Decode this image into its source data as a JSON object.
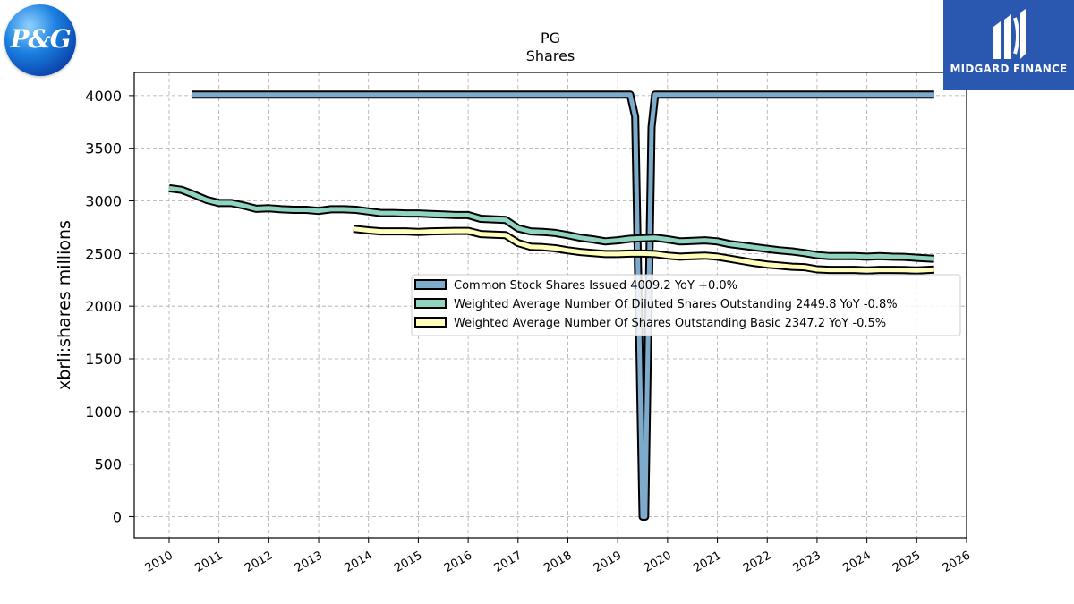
{
  "logos": {
    "company": "P&G",
    "brand": "MIDGARD FINANCE"
  },
  "chart_data": {
    "type": "line",
    "title": "PG",
    "subtitle": "Shares",
    "xlabel": "",
    "ylabel": "xbrli:shares millions",
    "xlim": [
      2009.3,
      2026.0
    ],
    "ylim": [
      -200,
      4220
    ],
    "x_ticks": [
      "2010",
      "2011",
      "2012",
      "2013",
      "2014",
      "2015",
      "2016",
      "2017",
      "2018",
      "2019",
      "2020",
      "2021",
      "2022",
      "2023",
      "2024",
      "2025",
      "2026"
    ],
    "y_ticks": [
      "0",
      "500",
      "1000",
      "1500",
      "2000",
      "2500",
      "3000",
      "3500",
      "4000"
    ],
    "grid": true,
    "legend_position": "center-right",
    "series": [
      {
        "name": "Common Stock Shares Issued",
        "legend": "Common Stock Shares Issued  4009.2 YoY +0.0%",
        "color": "#7eaacb",
        "points": [
          [
            2010.45,
            4009.2
          ],
          [
            2019.25,
            4009.2
          ],
          [
            2019.35,
            3800
          ],
          [
            2019.5,
            0
          ],
          [
            2019.55,
            0
          ],
          [
            2019.68,
            3700
          ],
          [
            2019.75,
            4009.2
          ],
          [
            2025.35,
            4009.2
          ]
        ]
      },
      {
        "name": "Weighted Average Number Of Diluted Shares Outstanding",
        "legend": "Weighted Average Number Of Diluted Shares Outstanding  2449.8 YoY -0.8%",
        "color": "#8fd3c1",
        "points": [
          [
            2010.0,
            3120
          ],
          [
            2010.25,
            3105
          ],
          [
            2010.5,
            3060
          ],
          [
            2010.75,
            3010
          ],
          [
            2011.0,
            2980
          ],
          [
            2011.25,
            2980
          ],
          [
            2011.5,
            2955
          ],
          [
            2011.75,
            2925
          ],
          [
            2012.0,
            2930
          ],
          [
            2012.25,
            2920
          ],
          [
            2012.5,
            2915
          ],
          [
            2012.75,
            2915
          ],
          [
            2013.0,
            2905
          ],
          [
            2013.25,
            2920
          ],
          [
            2013.5,
            2920
          ],
          [
            2013.75,
            2915
          ],
          [
            2014.0,
            2900
          ],
          [
            2014.25,
            2885
          ],
          [
            2014.5,
            2885
          ],
          [
            2014.75,
            2880
          ],
          [
            2015.0,
            2880
          ],
          [
            2015.25,
            2875
          ],
          [
            2015.5,
            2870
          ],
          [
            2015.75,
            2865
          ],
          [
            2016.0,
            2865
          ],
          [
            2016.25,
            2830
          ],
          [
            2016.5,
            2825
          ],
          [
            2016.75,
            2820
          ],
          [
            2017.0,
            2740
          ],
          [
            2017.25,
            2710
          ],
          [
            2017.5,
            2705
          ],
          [
            2017.75,
            2695
          ],
          [
            2018.0,
            2675
          ],
          [
            2018.25,
            2650
          ],
          [
            2018.5,
            2635
          ],
          [
            2018.75,
            2615
          ],
          [
            2019.0,
            2625
          ],
          [
            2019.25,
            2640
          ],
          [
            2019.5,
            2645
          ],
          [
            2019.75,
            2650
          ],
          [
            2020.0,
            2635
          ],
          [
            2020.25,
            2615
          ],
          [
            2020.5,
            2620
          ],
          [
            2020.75,
            2625
          ],
          [
            2021.0,
            2615
          ],
          [
            2021.25,
            2590
          ],
          [
            2021.5,
            2575
          ],
          [
            2021.75,
            2560
          ],
          [
            2022.0,
            2545
          ],
          [
            2022.25,
            2530
          ],
          [
            2022.5,
            2520
          ],
          [
            2022.75,
            2505
          ],
          [
            2023.0,
            2485
          ],
          [
            2023.25,
            2475
          ],
          [
            2023.5,
            2475
          ],
          [
            2023.75,
            2475
          ],
          [
            2024.0,
            2470
          ],
          [
            2024.25,
            2475
          ],
          [
            2024.5,
            2470
          ],
          [
            2024.75,
            2468
          ],
          [
            2025.0,
            2460
          ],
          [
            2025.35,
            2449.8
          ]
        ]
      },
      {
        "name": "Weighted Average Number Of Shares Outstanding Basic",
        "legend": "Weighted Average Number Of Shares Outstanding Basic  2347.2 YoY -0.5%",
        "color": "#ffffbb",
        "points": [
          [
            2013.7,
            2735
          ],
          [
            2014.0,
            2720
          ],
          [
            2014.25,
            2710
          ],
          [
            2014.5,
            2710
          ],
          [
            2014.75,
            2710
          ],
          [
            2015.0,
            2705
          ],
          [
            2015.25,
            2710
          ],
          [
            2015.5,
            2712
          ],
          [
            2015.75,
            2715
          ],
          [
            2016.0,
            2715
          ],
          [
            2016.25,
            2685
          ],
          [
            2016.5,
            2680
          ],
          [
            2016.75,
            2675
          ],
          [
            2017.0,
            2600
          ],
          [
            2017.25,
            2565
          ],
          [
            2017.5,
            2560
          ],
          [
            2017.75,
            2550
          ],
          [
            2018.0,
            2530
          ],
          [
            2018.25,
            2515
          ],
          [
            2018.5,
            2505
          ],
          [
            2018.75,
            2495
          ],
          [
            2019.0,
            2495
          ],
          [
            2019.25,
            2500
          ],
          [
            2019.5,
            2500
          ],
          [
            2019.75,
            2495
          ],
          [
            2020.0,
            2480
          ],
          [
            2020.25,
            2470
          ],
          [
            2020.5,
            2475
          ],
          [
            2020.75,
            2480
          ],
          [
            2021.0,
            2470
          ],
          [
            2021.25,
            2450
          ],
          [
            2021.5,
            2430
          ],
          [
            2021.75,
            2410
          ],
          [
            2022.0,
            2395
          ],
          [
            2022.25,
            2385
          ],
          [
            2022.5,
            2375
          ],
          [
            2022.75,
            2370
          ],
          [
            2023.0,
            2350
          ],
          [
            2023.25,
            2345
          ],
          [
            2023.5,
            2345
          ],
          [
            2023.75,
            2345
          ],
          [
            2024.0,
            2340
          ],
          [
            2024.25,
            2345
          ],
          [
            2024.5,
            2345
          ],
          [
            2024.75,
            2343
          ],
          [
            2025.0,
            2340
          ],
          [
            2025.35,
            2347.2
          ]
        ]
      }
    ]
  }
}
